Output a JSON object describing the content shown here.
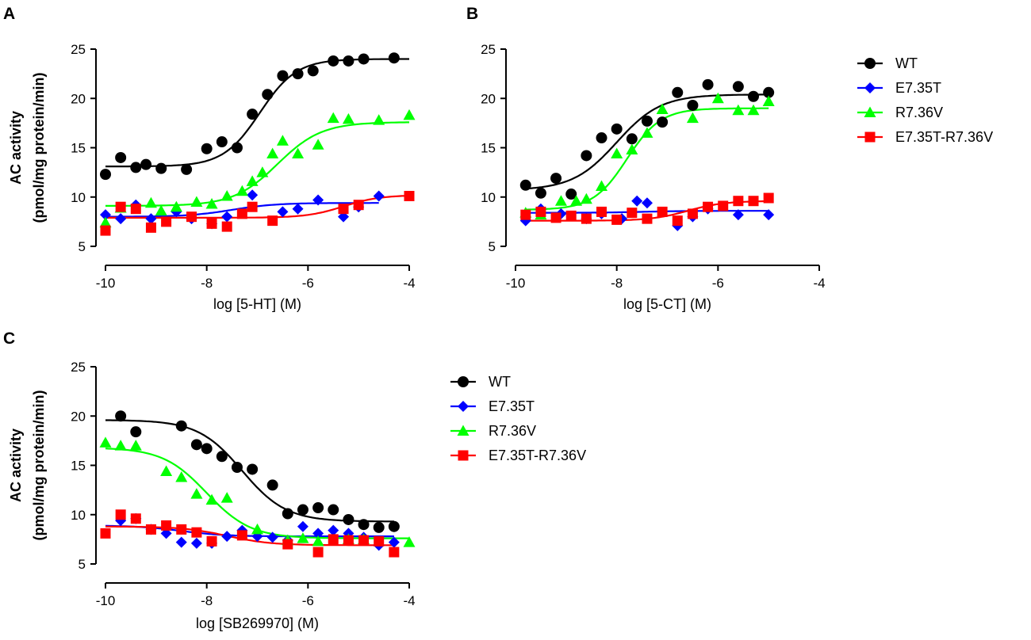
{
  "figure": {
    "background": "#ffffff"
  },
  "chart_data": [
    {
      "id": "A",
      "type": "scatter",
      "panel_label": "A",
      "xlabel": "log [5-HT] (M)",
      "ylabel_lines": [
        "AC activity",
        "(pmol/mg protein/min)"
      ],
      "xlim": [
        -10,
        -4
      ],
      "ylim": [
        5,
        25
      ],
      "xticks": [
        -10,
        -8,
        -6,
        -4
      ],
      "xtick_labels": [
        "-10",
        "-8",
        "-6",
        "-4"
      ],
      "yticks": [
        5,
        10,
        15,
        20,
        25
      ],
      "ytick_labels": [
        "5",
        "10",
        "15",
        "20",
        "25"
      ],
      "legend_position": "right",
      "series": [
        {
          "name": "WT",
          "color": "#000000",
          "marker": "circle",
          "x": [
            -10,
            -9.7,
            -9.4,
            -9.2,
            -8.9,
            -8.4,
            -8,
            -7.7,
            -7.4,
            -7.1,
            -6.8,
            -6.5,
            -6.2,
            -5.9,
            -5.5,
            -5.2,
            -4.9,
            -4.3
          ],
          "y": [
            12.3,
            14.0,
            13.0,
            13.3,
            12.9,
            12.8,
            14.9,
            15.6,
            15.0,
            18.4,
            20.4,
            22.3,
            22.5,
            22.8,
            23.8,
            23.8,
            24.0,
            24.1
          ],
          "curve": {
            "model": "sigmoid",
            "bottom": 13.1,
            "top": 24.0,
            "logEC50": -6.95,
            "hill": 1.2,
            "xrange": [
              -10,
              -4
            ]
          }
        },
        {
          "name": "E7.35T",
          "color": "#0000ff",
          "marker": "diamond",
          "x": [
            -10,
            -9.7,
            -9.4,
            -9.1,
            -8.6,
            -8.3,
            -7.9,
            -7.6,
            -7.1,
            -6.5,
            -6.2,
            -5.8,
            -5.3,
            -5,
            -4.6
          ],
          "y": [
            8.2,
            7.8,
            9.2,
            7.8,
            8.5,
            7.8,
            7.3,
            8.0,
            10.2,
            8.5,
            8.8,
            9.7,
            8.0,
            9.0,
            10.1
          ],
          "curve": {
            "model": "sigmoid",
            "bottom": 8.0,
            "top": 9.4,
            "logEC50": -7.5,
            "hill": 1.0,
            "xrange": [
              -10,
              -4.6
            ]
          }
        },
        {
          "name": "R7.36V",
          "color": "#00ff00",
          "marker": "triangle",
          "x": [
            -10,
            -9.7,
            -9.1,
            -8.9,
            -8.6,
            -8.2,
            -7.9,
            -7.6,
            -7.3,
            -7.1,
            -6.9,
            -6.7,
            -6.5,
            -6.2,
            -5.8,
            -5.5,
            -5.2,
            -4.6,
            -4
          ],
          "y": [
            7.4,
            8.9,
            9.4,
            8.6,
            9.0,
            9.5,
            9.3,
            10.1,
            10.6,
            11.6,
            12.5,
            14.4,
            15.7,
            14.4,
            15.3,
            18.0,
            17.9,
            17.8,
            18.3
          ],
          "curve": {
            "model": "sigmoid",
            "bottom": 9.1,
            "top": 17.6,
            "logEC50": -6.6,
            "hill": 1.0,
            "xrange": [
              -10,
              -4
            ]
          }
        },
        {
          "name": "E7.35T-R7.36V",
          "color": "#ff0000",
          "marker": "square",
          "x": [
            -10,
            -9.7,
            -9.4,
            -9.1,
            -8.8,
            -8.3,
            -7.9,
            -7.6,
            -7.3,
            -7.1,
            -6.7,
            -5.3,
            -5,
            -4
          ],
          "y": [
            6.6,
            9.0,
            8.8,
            6.9,
            7.5,
            8.0,
            7.3,
            7.0,
            8.3,
            9.0,
            7.6,
            8.8,
            9.2,
            10.1
          ],
          "curve": {
            "model": "sigmoid",
            "bottom": 7.9,
            "top": 10.2,
            "logEC50": -5.3,
            "hill": 1.2,
            "xrange": [
              -10,
              -4
            ]
          }
        }
      ]
    },
    {
      "id": "B",
      "type": "scatter",
      "panel_label": "B",
      "xlabel": "log [5-CT] (M)",
      "ylabel_lines": [],
      "xlim": [
        -10,
        -4
      ],
      "ylim": [
        5,
        25
      ],
      "xticks": [
        -10,
        -8,
        -6,
        -4
      ],
      "xtick_labels": [
        "-10",
        "-8",
        "-6",
        "-4"
      ],
      "yticks": [
        5,
        10,
        15,
        20,
        25
      ],
      "ytick_labels": [
        "5",
        "10",
        "15",
        "20",
        "25"
      ],
      "legend_position": "right",
      "series": [
        {
          "name": "WT",
          "color": "#000000",
          "marker": "circle",
          "x": [
            -9.8,
            -9.5,
            -9.2,
            -8.9,
            -8.6,
            -8.3,
            -8,
            -7.7,
            -7.4,
            -7.1,
            -6.8,
            -6.5,
            -6.2,
            -5.6,
            -5.3,
            -5
          ],
          "y": [
            11.2,
            10.4,
            11.9,
            10.3,
            14.2,
            16.0,
            16.9,
            15.9,
            17.7,
            17.6,
            20.6,
            19.3,
            21.4,
            21.2,
            20.2,
            20.6
          ],
          "curve": {
            "model": "sigmoid",
            "bottom": 10.7,
            "top": 20.4,
            "logEC50": -8.0,
            "hill": 1.0,
            "xrange": [
              -9.8,
              -5
            ]
          }
        },
        {
          "name": "E7.35T",
          "color": "#0000ff",
          "marker": "diamond",
          "x": [
            -9.8,
            -9.5,
            -9.1,
            -8.6,
            -8.3,
            -7.9,
            -7.6,
            -7.4,
            -6.8,
            -6.5,
            -6.2,
            -5.6,
            -5
          ],
          "y": [
            7.6,
            8.8,
            8.3,
            7.8,
            8.3,
            7.8,
            9.6,
            9.4,
            7.1,
            8.0,
            8.8,
            8.2,
            8.2
          ],
          "curve": {
            "model": "sigmoid",
            "bottom": 8.4,
            "top": 8.6,
            "logEC50": -7.5,
            "hill": 1.0,
            "xrange": [
              -9.8,
              -5
            ]
          }
        },
        {
          "name": "R7.36V",
          "color": "#00ff00",
          "marker": "triangle",
          "x": [
            -9.8,
            -9.5,
            -9.1,
            -8.8,
            -8.6,
            -8.3,
            -8.0,
            -7.7,
            -7.4,
            -7.1,
            -6.5,
            -6.0,
            -5.6,
            -5.3,
            -5
          ],
          "y": [
            8.4,
            8.2,
            9.6,
            9.6,
            9.8,
            11.1,
            14.4,
            14.8,
            16.5,
            18.9,
            18.0,
            20.0,
            18.8,
            18.8,
            19.7
          ],
          "curve": {
            "model": "sigmoid",
            "bottom": 8.7,
            "top": 19.0,
            "logEC50": -7.8,
            "hill": 1.3,
            "xrange": [
              -9.8,
              -5
            ]
          }
        },
        {
          "name": "E7.35T-R7.36V",
          "color": "#ff0000",
          "marker": "square",
          "x": [
            -9.8,
            -9.5,
            -9.2,
            -8.9,
            -8.6,
            -8.3,
            -8,
            -7.7,
            -7.4,
            -7.1,
            -6.8,
            -6.5,
            -6.2,
            -5.9,
            -5.6,
            -5.3,
            -5
          ],
          "y": [
            8.2,
            8.5,
            7.9,
            8.1,
            7.8,
            8.5,
            7.7,
            8.4,
            7.8,
            8.5,
            7.6,
            8.3,
            9.0,
            9.1,
            9.6,
            9.6,
            9.9
          ],
          "curve": {
            "model": "sigmoid",
            "bottom": 7.6,
            "top": 9.6,
            "logEC50": -6.6,
            "hill": 1.2,
            "xrange": [
              -9.8,
              -5
            ]
          }
        }
      ]
    },
    {
      "id": "C",
      "type": "scatter",
      "panel_label": "C",
      "xlabel": "log [SB269970] (M)",
      "ylabel_lines": [
        "AC activity",
        "(pmol/mg protein/min)"
      ],
      "xlim": [
        -10,
        -4
      ],
      "ylim": [
        5,
        25
      ],
      "xticks": [
        -10,
        -8,
        -6,
        -4
      ],
      "xtick_labels": [
        "-10",
        "-8",
        "-6",
        "-4"
      ],
      "yticks": [
        5,
        10,
        15,
        20,
        25
      ],
      "ytick_labels": [
        "5",
        "10",
        "15",
        "20",
        "25"
      ],
      "legend_position": "right",
      "series": [
        {
          "name": "WT",
          "color": "#000000",
          "marker": "circle",
          "x": [
            -9.7,
            -9.4,
            -8.5,
            -8.2,
            -8.0,
            -7.7,
            -7.4,
            -7.1,
            -6.7,
            -6.4,
            -6.1,
            -5.8,
            -5.5,
            -5.2,
            -4.9,
            -4.6,
            -4.3
          ],
          "y": [
            20.0,
            18.4,
            19.0,
            17.1,
            16.7,
            15.9,
            14.8,
            14.6,
            13.0,
            10.1,
            10.5,
            10.7,
            10.5,
            9.5,
            9.0,
            8.7,
            8.8
          ],
          "curve": {
            "model": "sigmoid",
            "bottom": 9.3,
            "top": 19.6,
            "logEC50": -7.3,
            "hill": -1.0,
            "xrange": [
              -10,
              -4.3
            ]
          }
        },
        {
          "name": "E7.35T",
          "color": "#0000ff",
          "marker": "diamond",
          "x": [
            -9.7,
            -9.4,
            -9.1,
            -8.8,
            -8.5,
            -8.2,
            -7.9,
            -7.6,
            -7.3,
            -7.0,
            -6.7,
            -6.4,
            -6.1,
            -5.8,
            -5.5,
            -5.2,
            -4.9,
            -4.6,
            -4.3
          ],
          "y": [
            9.4,
            9.6,
            8.5,
            8.1,
            7.2,
            7.1,
            7.1,
            7.8,
            8.4,
            7.8,
            7.7,
            7.4,
            8.8,
            8.1,
            8.4,
            8.1,
            7.7,
            6.9,
            7.2
          ],
          "curve": {
            "model": "sigmoid",
            "bottom": 7.8,
            "top": 8.9,
            "logEC50": -8.5,
            "hill": -1.0,
            "xrange": [
              -10,
              -4.3
            ]
          }
        },
        {
          "name": "R7.36V",
          "color": "#00ff00",
          "marker": "triangle",
          "x": [
            -10.0,
            -9.7,
            -9.4,
            -8.8,
            -8.5,
            -8.2,
            -7.9,
            -7.6,
            -7.0,
            -6.4,
            -6.1,
            -5.8,
            -5.2,
            -4.9,
            -4.0
          ],
          "y": [
            17.3,
            17.0,
            17.0,
            14.4,
            13.8,
            12.1,
            11.5,
            11.7,
            8.5,
            7.4,
            7.6,
            7.3,
            7.5,
            7.5,
            7.2
          ],
          "curve": {
            "model": "sigmoid",
            "bottom": 7.6,
            "top": 16.8,
            "logEC50": -8.0,
            "hill": -1.0,
            "xrange": [
              -10,
              -4
            ]
          }
        },
        {
          "name": "E7.35T-R7.36V",
          "color": "#ff0000",
          "marker": "square",
          "x": [
            -10.0,
            -9.7,
            -9.4,
            -9.1,
            -8.8,
            -8.5,
            -8.2,
            -7.9,
            -7.3,
            -6.4,
            -5.8,
            -5.5,
            -5.2,
            -4.9,
            -4.6,
            -4.3
          ],
          "y": [
            8.1,
            10.0,
            9.6,
            8.5,
            8.9,
            8.5,
            8.2,
            7.3,
            7.9,
            7.0,
            6.2,
            7.5,
            7.4,
            7.4,
            7.3,
            6.2
          ],
          "curve": {
            "model": "sigmoid",
            "bottom": 6.9,
            "top": 8.8,
            "logEC50": -7.6,
            "hill": -1.0,
            "xrange": [
              -10,
              -4.3
            ]
          }
        }
      ]
    }
  ]
}
